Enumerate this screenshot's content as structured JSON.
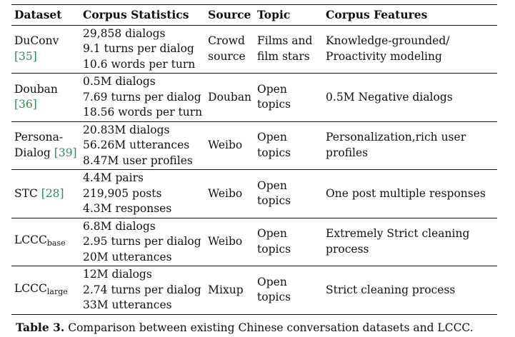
{
  "table": {
    "headers": [
      "Dataset",
      "Corpus Statistics",
      "Source",
      "Topic",
      "Corpus Features"
    ],
    "rows": [
      {
        "dataset": "DuConv",
        "cite": "[35]",
        "stats": [
          "29,858 dialogs",
          "9.1 turns per dialog",
          "10.6 words per turn"
        ],
        "source": "Crowd source",
        "topic": "Films and film stars",
        "features": "Knowledge-grounded/ Proactivity modeling"
      },
      {
        "dataset": "Douban",
        "cite": "[36]",
        "stats": [
          "0.5M dialogs",
          "7.69 turns per dialog",
          "18.56 words per turn"
        ],
        "source": "Douban",
        "topic": "Open topics",
        "features": "0.5M Negative dialogs"
      },
      {
        "dataset": "Persona-Dialog",
        "cite": "[39]",
        "stats": [
          "20.83M dialogs",
          "56.26M utterances",
          "8.47M user profiles"
        ],
        "source": "Weibo",
        "topic": "Open topics",
        "features": "Personalization,rich user profiles"
      },
      {
        "dataset": "STC",
        "cite": "[28]",
        "stats": [
          "4.4M pairs",
          "219,905 posts",
          "4.3M responses"
        ],
        "source": "Weibo",
        "topic": "Open topics",
        "features": "One post multiple responses"
      },
      {
        "dataset": "LCCC",
        "subscript": "base",
        "stats": [
          "6.8M dialogs",
          "2.95 turns per dialog",
          "20M utterances"
        ],
        "source": "Weibo",
        "topic": "Open topics",
        "features": "Extremely Strict cleaning process"
      },
      {
        "dataset": "LCCC",
        "subscript": "large",
        "stats": [
          "12M dialogs",
          "2.74 turns per dialog",
          "33M utterances"
        ],
        "source": "Mixup",
        "topic": "Open topics",
        "features": "Strict cleaning process"
      }
    ]
  },
  "caption": {
    "label": "Table 3.",
    "text": "Comparison between existing Chinese conversation datasets and LCCC."
  },
  "colors": {
    "citation": "#2e8b57",
    "text": "#111111",
    "background": "#ffffff"
  }
}
